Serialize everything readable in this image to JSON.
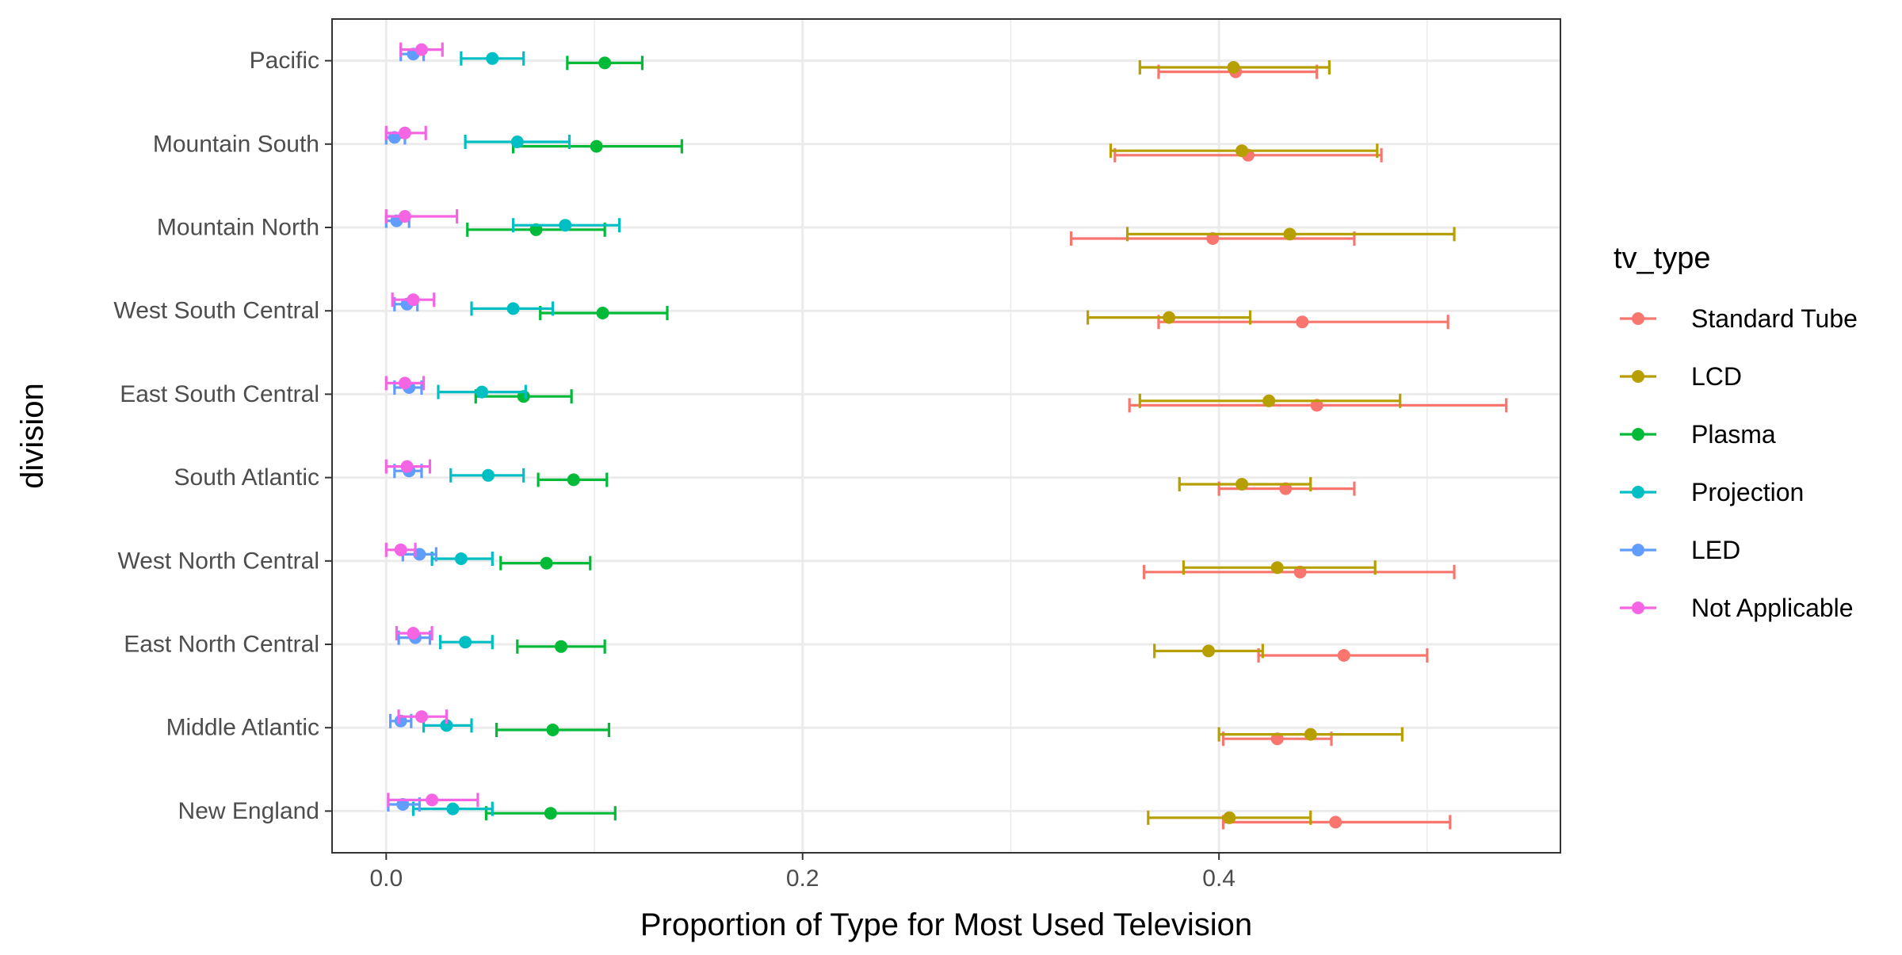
{
  "chart_data": {
    "type": "scatter",
    "subtype": "point-with-horizontal-error-bars",
    "title": "",
    "xlabel": "Proportion of Type for Most Used Television",
    "ylabel": "division",
    "xlim": [
      -0.026,
      0.564
    ],
    "x_ticks": [
      0.0,
      0.2,
      0.4
    ],
    "x_tick_labels": [
      "0.0",
      "0.2",
      "0.4"
    ],
    "x_minor_ticks": [
      0.1,
      0.3,
      0.5
    ],
    "grid": true,
    "legend": {
      "title": "tv_type",
      "position": "right"
    },
    "categories": [
      "Pacific",
      "Mountain South",
      "Mountain North",
      "West South Central",
      "East South Central",
      "South Atlantic",
      "West North Central",
      "East North Central",
      "Middle Atlantic",
      "New England"
    ],
    "series": [
      {
        "name": "Standard Tube",
        "color": "#F8766D",
        "values": [
          0.408,
          0.414,
          0.397,
          0.44,
          0.447,
          0.432,
          0.439,
          0.46,
          0.428,
          0.456
        ],
        "lower": [
          0.371,
          0.35,
          0.329,
          0.371,
          0.357,
          0.4,
          0.364,
          0.419,
          0.402,
          0.402
        ],
        "upper": [
          0.447,
          0.478,
          0.465,
          0.51,
          0.538,
          0.465,
          0.513,
          0.5,
          0.454,
          0.511
        ]
      },
      {
        "name": "LCD",
        "color": "#B79F00",
        "values": [
          0.407,
          0.411,
          0.434,
          0.376,
          0.424,
          0.411,
          0.428,
          0.395,
          0.444,
          0.405
        ],
        "lower": [
          0.362,
          0.348,
          0.356,
          0.337,
          0.362,
          0.381,
          0.383,
          0.369,
          0.4,
          0.366
        ],
        "upper": [
          0.453,
          0.476,
          0.513,
          0.415,
          0.487,
          0.444,
          0.475,
          0.421,
          0.488,
          0.444
        ]
      },
      {
        "name": "Plasma",
        "color": "#00BA38",
        "values": [
          0.105,
          0.101,
          0.072,
          0.104,
          0.066,
          0.09,
          0.077,
          0.084,
          0.08,
          0.079
        ],
        "lower": [
          0.087,
          0.061,
          0.039,
          0.074,
          0.043,
          0.073,
          0.055,
          0.063,
          0.053,
          0.048
        ],
        "upper": [
          0.123,
          0.142,
          0.105,
          0.135,
          0.089,
          0.106,
          0.098,
          0.105,
          0.107,
          0.11
        ]
      },
      {
        "name": "Projection",
        "color": "#00BFC4",
        "values": [
          0.051,
          0.063,
          0.086,
          0.061,
          0.046,
          0.049,
          0.036,
          0.038,
          0.029,
          0.032
        ],
        "lower": [
          0.036,
          0.038,
          0.061,
          0.041,
          0.025,
          0.031,
          0.022,
          0.026,
          0.018,
          0.013
        ],
        "upper": [
          0.066,
          0.088,
          0.112,
          0.08,
          0.067,
          0.066,
          0.051,
          0.051,
          0.041,
          0.051
        ]
      },
      {
        "name": "LED",
        "color": "#619CFF",
        "values": [
          0.013,
          0.004,
          0.005,
          0.01,
          0.011,
          0.011,
          0.016,
          0.014,
          0.007,
          0.008
        ],
        "lower": [
          0.007,
          0.0,
          0.0,
          0.004,
          0.004,
          0.004,
          0.008,
          0.006,
          0.002,
          0.001
        ],
        "upper": [
          0.018,
          0.009,
          0.011,
          0.015,
          0.017,
          0.017,
          0.024,
          0.021,
          0.012,
          0.016
        ]
      },
      {
        "name": "Not Applicable",
        "color": "#F564E3",
        "values": [
          0.017,
          0.009,
          0.009,
          0.013,
          0.009,
          0.01,
          0.007,
          0.013,
          0.017,
          0.022
        ],
        "lower": [
          0.007,
          0.0,
          0.0,
          0.003,
          0.0,
          0.0,
          0.0,
          0.005,
          0.006,
          0.001
        ],
        "upper": [
          0.027,
          0.019,
          0.034,
          0.023,
          0.018,
          0.021,
          0.014,
          0.022,
          0.029,
          0.044
        ]
      }
    ]
  }
}
